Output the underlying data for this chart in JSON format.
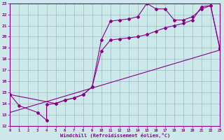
{
  "bg_color": "#cce8e8",
  "line_color": "#880088",
  "grid_color": "#99bbcc",
  "xlabel": "Windchill (Refroidissement éolien,°C)",
  "xlim": [
    0,
    23
  ],
  "ylim": [
    12,
    23
  ],
  "xticks": [
    0,
    1,
    2,
    3,
    4,
    5,
    6,
    7,
    8,
    9,
    10,
    11,
    12,
    13,
    14,
    15,
    16,
    17,
    18,
    19,
    20,
    21,
    22,
    23
  ],
  "yticks": [
    12,
    13,
    14,
    15,
    16,
    17,
    18,
    19,
    20,
    21,
    22,
    23
  ],
  "line1_x": [
    0,
    1,
    3,
    4,
    4,
    5,
    6,
    7,
    8,
    9,
    10,
    11,
    12,
    13,
    14,
    15,
    16,
    17,
    18,
    19,
    20,
    21,
    22,
    23
  ],
  "line1_y": [
    14.8,
    13.8,
    13.2,
    12.5,
    13.9,
    14.0,
    14.3,
    14.5,
    14.8,
    15.5,
    19.7,
    21.4,
    21.5,
    21.6,
    21.8,
    23.0,
    22.5,
    22.5,
    21.5,
    21.5,
    21.8,
    22.5,
    22.8,
    19.0
  ],
  "line2_x": [
    0,
    5,
    6,
    7,
    8,
    9,
    10,
    11,
    12,
    13,
    14,
    15,
    16,
    17,
    18,
    19,
    20,
    21,
    22,
    23
  ],
  "line2_y": [
    14.8,
    14.0,
    14.3,
    14.5,
    14.8,
    15.5,
    18.7,
    19.7,
    19.8,
    19.9,
    20.0,
    20.2,
    20.5,
    20.8,
    21.0,
    21.2,
    21.5,
    22.7,
    22.8,
    18.9
  ],
  "line3_x": [
    0,
    23
  ],
  "line3_y": [
    13.2,
    18.8
  ]
}
